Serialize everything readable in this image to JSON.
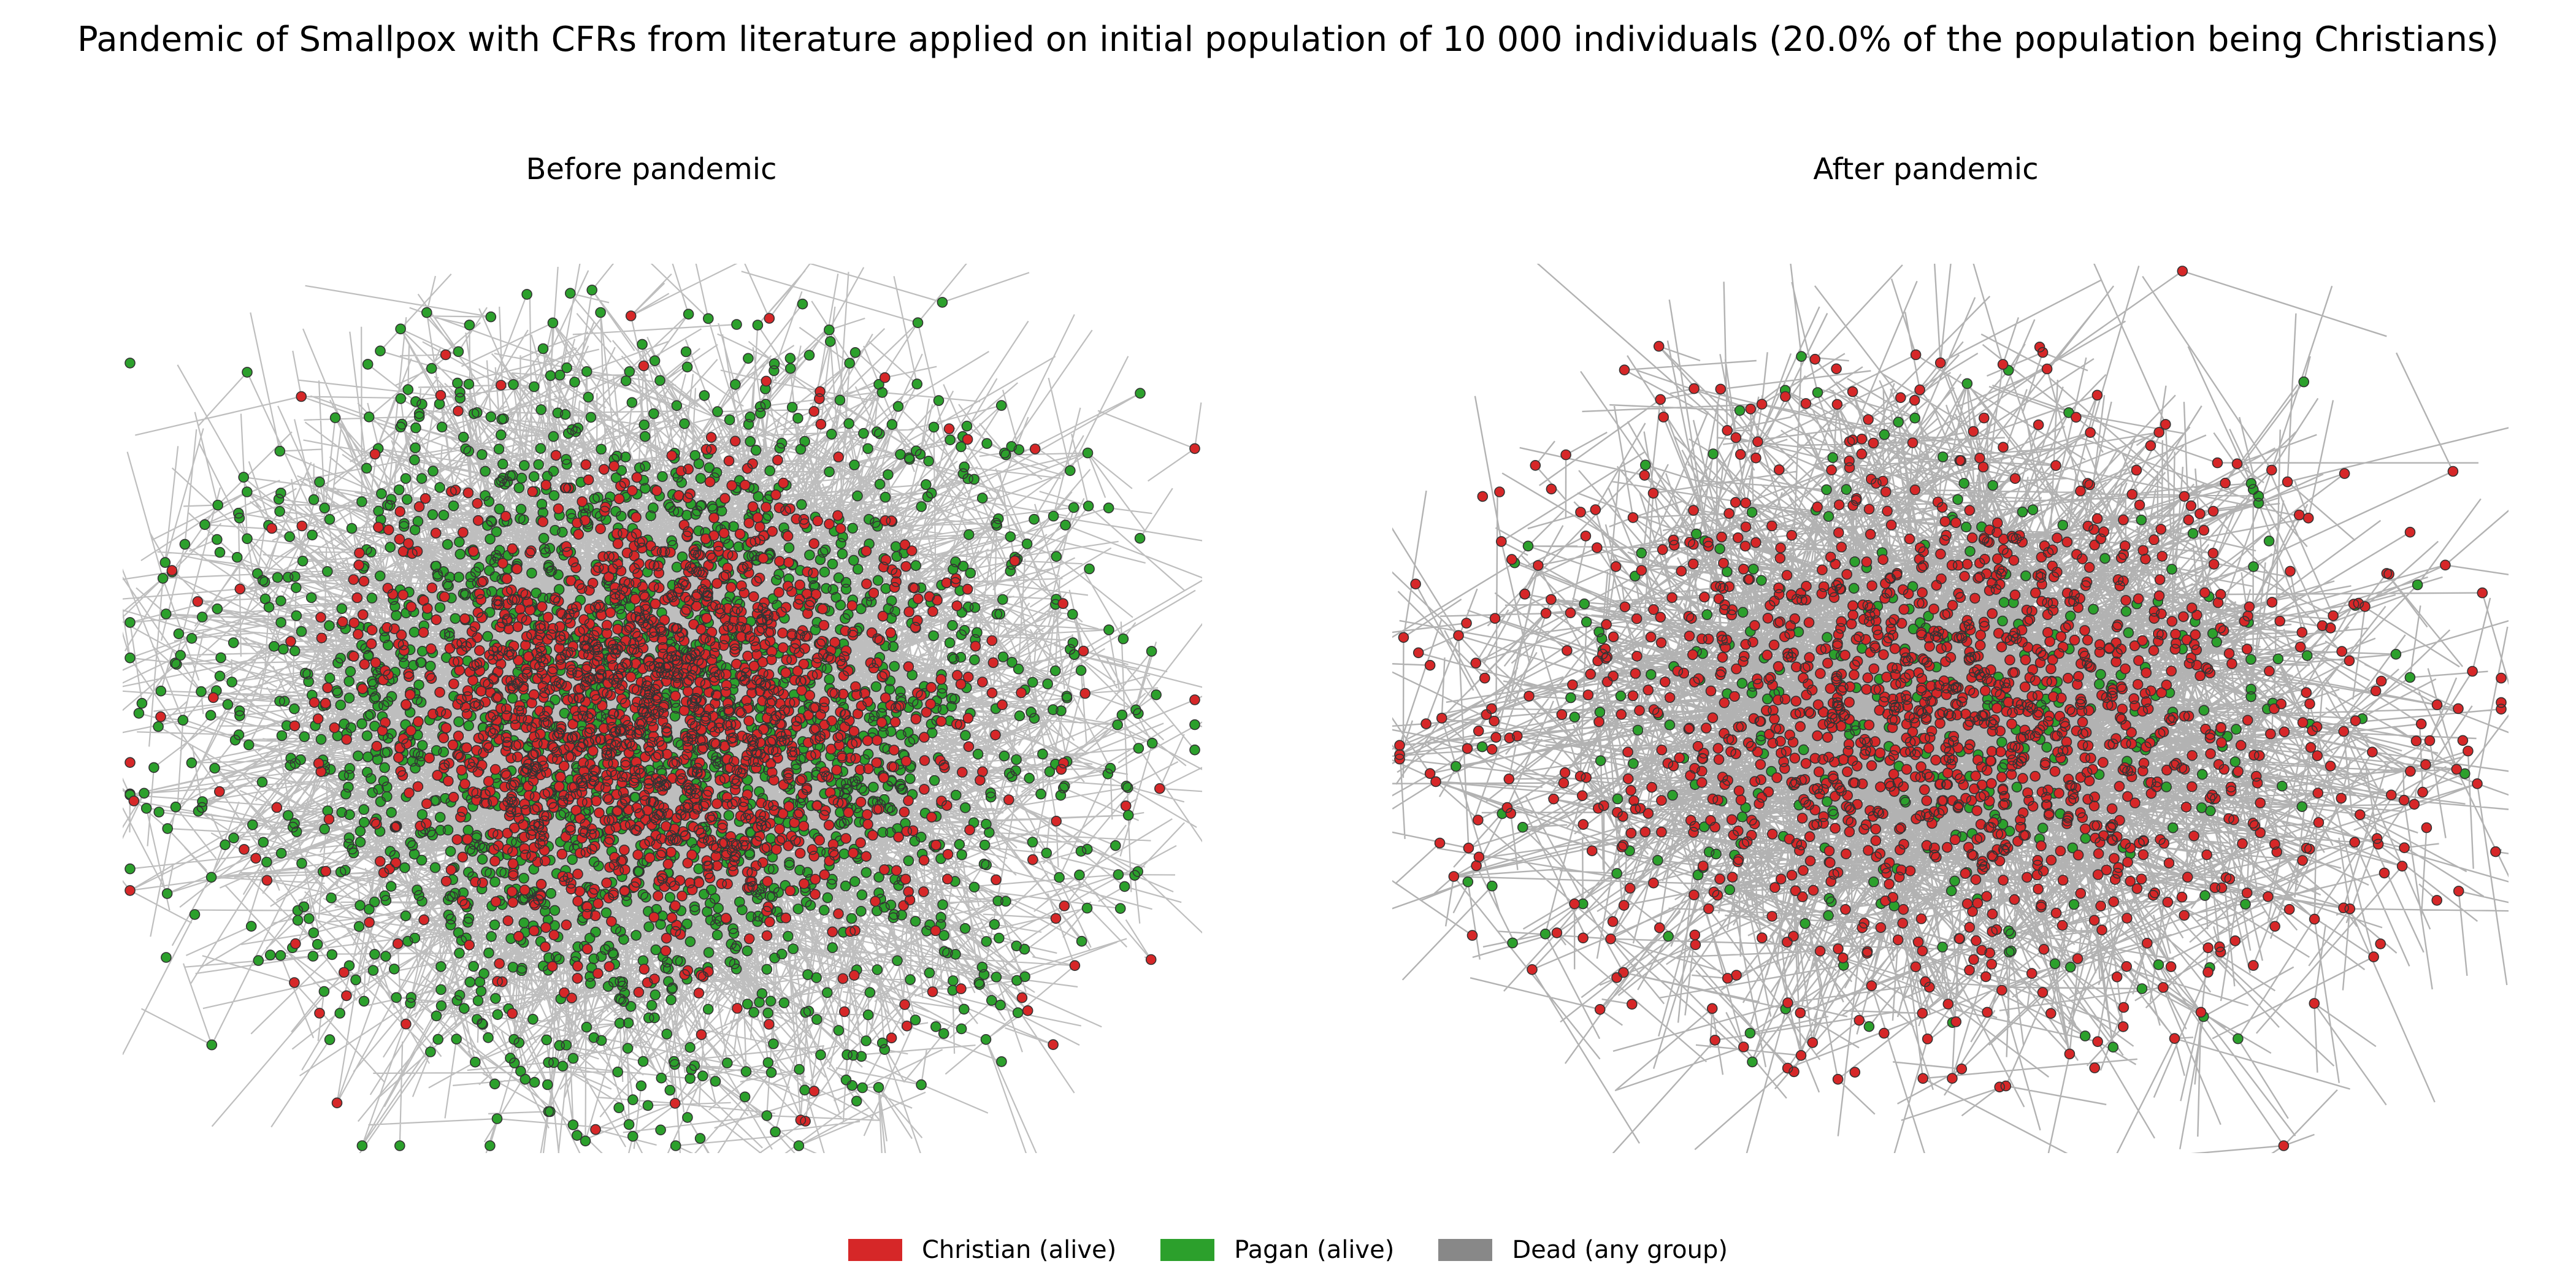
{
  "figure": {
    "title": "Pandemic of Smallpox with CFRs from literature applied on initial population of 10 000 individuals (20.0% of the population being Christians)"
  },
  "panels": [
    {
      "title": "Before pandemic"
    },
    {
      "title": "After pandemic"
    }
  ],
  "legend": [
    {
      "label": "Christian (alive)",
      "color": "#d62728"
    },
    {
      "label": "Pagan (alive)",
      "color": "#2ca02c"
    },
    {
      "label": "Dead (any group)",
      "color": "#888888"
    }
  ],
  "colors": {
    "christian": "#d62728",
    "pagan": "#2ca02c",
    "dead_edge": "#888888",
    "node_outline": "#333333"
  }
}
